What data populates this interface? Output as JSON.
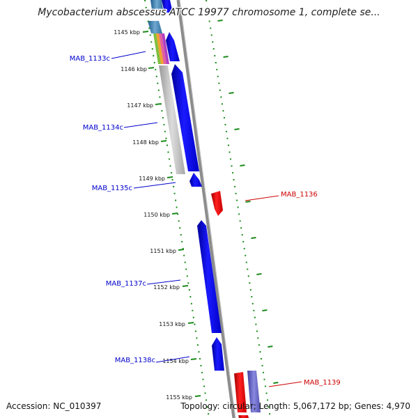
{
  "title": "Mycobacterium abscessus ATCC 19977 chromosome 1, complete se...",
  "footer": {
    "accession": "Accession: NC_010397",
    "topology": "Topology: circular; Length: 5,067,172 bp; Genes: 4,970"
  },
  "colors": {
    "gene_minus": "#0000e6",
    "gene_plus": "#e60000",
    "label_minus": "#0000cc",
    "label_plus": "#cc0000",
    "tick": "#1a8a1a",
    "track_gray": "#bdbdbd",
    "backbone": "#8a8a8a"
  },
  "ticks": [
    {
      "label": "1145 kbp"
    },
    {
      "label": "1146 kbp"
    },
    {
      "label": "1147 kbp"
    },
    {
      "label": "1148 kbp"
    },
    {
      "label": "1149 kbp"
    },
    {
      "label": "1150 kbp"
    },
    {
      "label": "1151 kbp"
    },
    {
      "label": "1152 kbp"
    },
    {
      "label": "1153 kbp"
    },
    {
      "label": "1154 kbp"
    },
    {
      "label": "1155 kbp"
    }
  ],
  "genes": [
    {
      "name": "MAB_1133c",
      "strand": "minus"
    },
    {
      "name": "MAB_1134c",
      "strand": "minus"
    },
    {
      "name": "MAB_1135c",
      "strand": "minus"
    },
    {
      "name": "MAB_1136",
      "strand": "plus"
    },
    {
      "name": "MAB_1137c",
      "strand": "minus"
    },
    {
      "name": "MAB_1138c",
      "strand": "minus"
    },
    {
      "name": "MAB_1139",
      "strand": "plus"
    }
  ]
}
